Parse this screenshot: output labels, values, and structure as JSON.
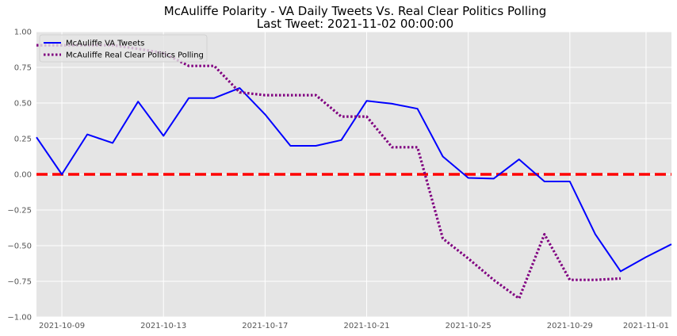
{
  "chart_data": {
    "type": "line",
    "title_line1": "McAuliffe Polarity - VA Daily Tweets Vs. Real Clear Politics Polling",
    "title_line2": "Last Tweet: 2021-11-02 00:00:00",
    "xlabel": "",
    "ylabel": "",
    "x_range": [
      "2021-10-08",
      "2021-11-02"
    ],
    "ylim": [
      -1.0,
      1.0
    ],
    "x_ticks": [
      "2021-10-09",
      "2021-10-13",
      "2021-10-17",
      "2021-10-21",
      "2021-10-25",
      "2021-10-29",
      "2021-11-01"
    ],
    "y_ticks": [
      "1.00",
      "0.75",
      "0.50",
      "0.25",
      "0.00",
      "−0.25",
      "−0.50",
      "−0.75",
      "−1.00"
    ],
    "y_tick_values": [
      1.0,
      0.75,
      0.5,
      0.25,
      0.0,
      -0.25,
      -0.5,
      -0.75,
      -1.0
    ],
    "grid": true,
    "legend_position": "top-left",
    "background": "#e5e5e5",
    "series": [
      {
        "name": "McAuliffe VA Tweets",
        "color": "#0000ff",
        "style": "solid",
        "x": [
          "2021-10-08",
          "2021-10-09",
          "2021-10-10",
          "2021-10-11",
          "2021-10-12",
          "2021-10-13",
          "2021-10-14",
          "2021-10-15",
          "2021-10-16",
          "2021-10-17",
          "2021-10-18",
          "2021-10-19",
          "2021-10-20",
          "2021-10-21",
          "2021-10-22",
          "2021-10-23",
          "2021-10-24",
          "2021-10-25",
          "2021-10-26",
          "2021-10-27",
          "2021-10-28",
          "2021-10-29",
          "2021-10-30",
          "2021-10-31",
          "2021-11-01",
          "2021-11-02"
        ],
        "y": [
          0.26,
          0.0,
          0.28,
          0.22,
          0.51,
          0.27,
          0.535,
          0.535,
          0.605,
          0.42,
          0.2,
          0.2,
          0.24,
          0.515,
          0.495,
          0.46,
          0.125,
          -0.025,
          -0.03,
          0.105,
          -0.05,
          -0.05,
          -0.42,
          -0.68,
          -0.58,
          -0.49
        ]
      },
      {
        "name": "McAuliffe Real Clear Politics Polling",
        "color": "#800080",
        "style": "dotted",
        "x": [
          "2021-10-08",
          "2021-10-09",
          "2021-10-10",
          "2021-10-11",
          "2021-10-12",
          "2021-10-13",
          "2021-10-14",
          "2021-10-15",
          "2021-10-16",
          "2021-10-17",
          "2021-10-18",
          "2021-10-19",
          "2021-10-20",
          "2021-10-21",
          "2021-10-22",
          "2021-10-23",
          "2021-10-24",
          "2021-10-25",
          "2021-10-26",
          "2021-10-27",
          "2021-10-28",
          "2021-10-29",
          "2021-10-30",
          "2021-10-31"
        ],
        "y": [
          0.905,
          0.905,
          0.905,
          0.905,
          0.88,
          0.85,
          0.76,
          0.76,
          0.575,
          0.555,
          0.555,
          0.555,
          0.405,
          0.405,
          0.19,
          0.19,
          -0.45,
          -0.59,
          -0.74,
          -0.87,
          -0.42,
          -0.74,
          -0.74,
          -0.73
        ]
      }
    ],
    "reference_line": {
      "y": 0.0,
      "color": "#ff0000",
      "style": "dashed"
    }
  }
}
